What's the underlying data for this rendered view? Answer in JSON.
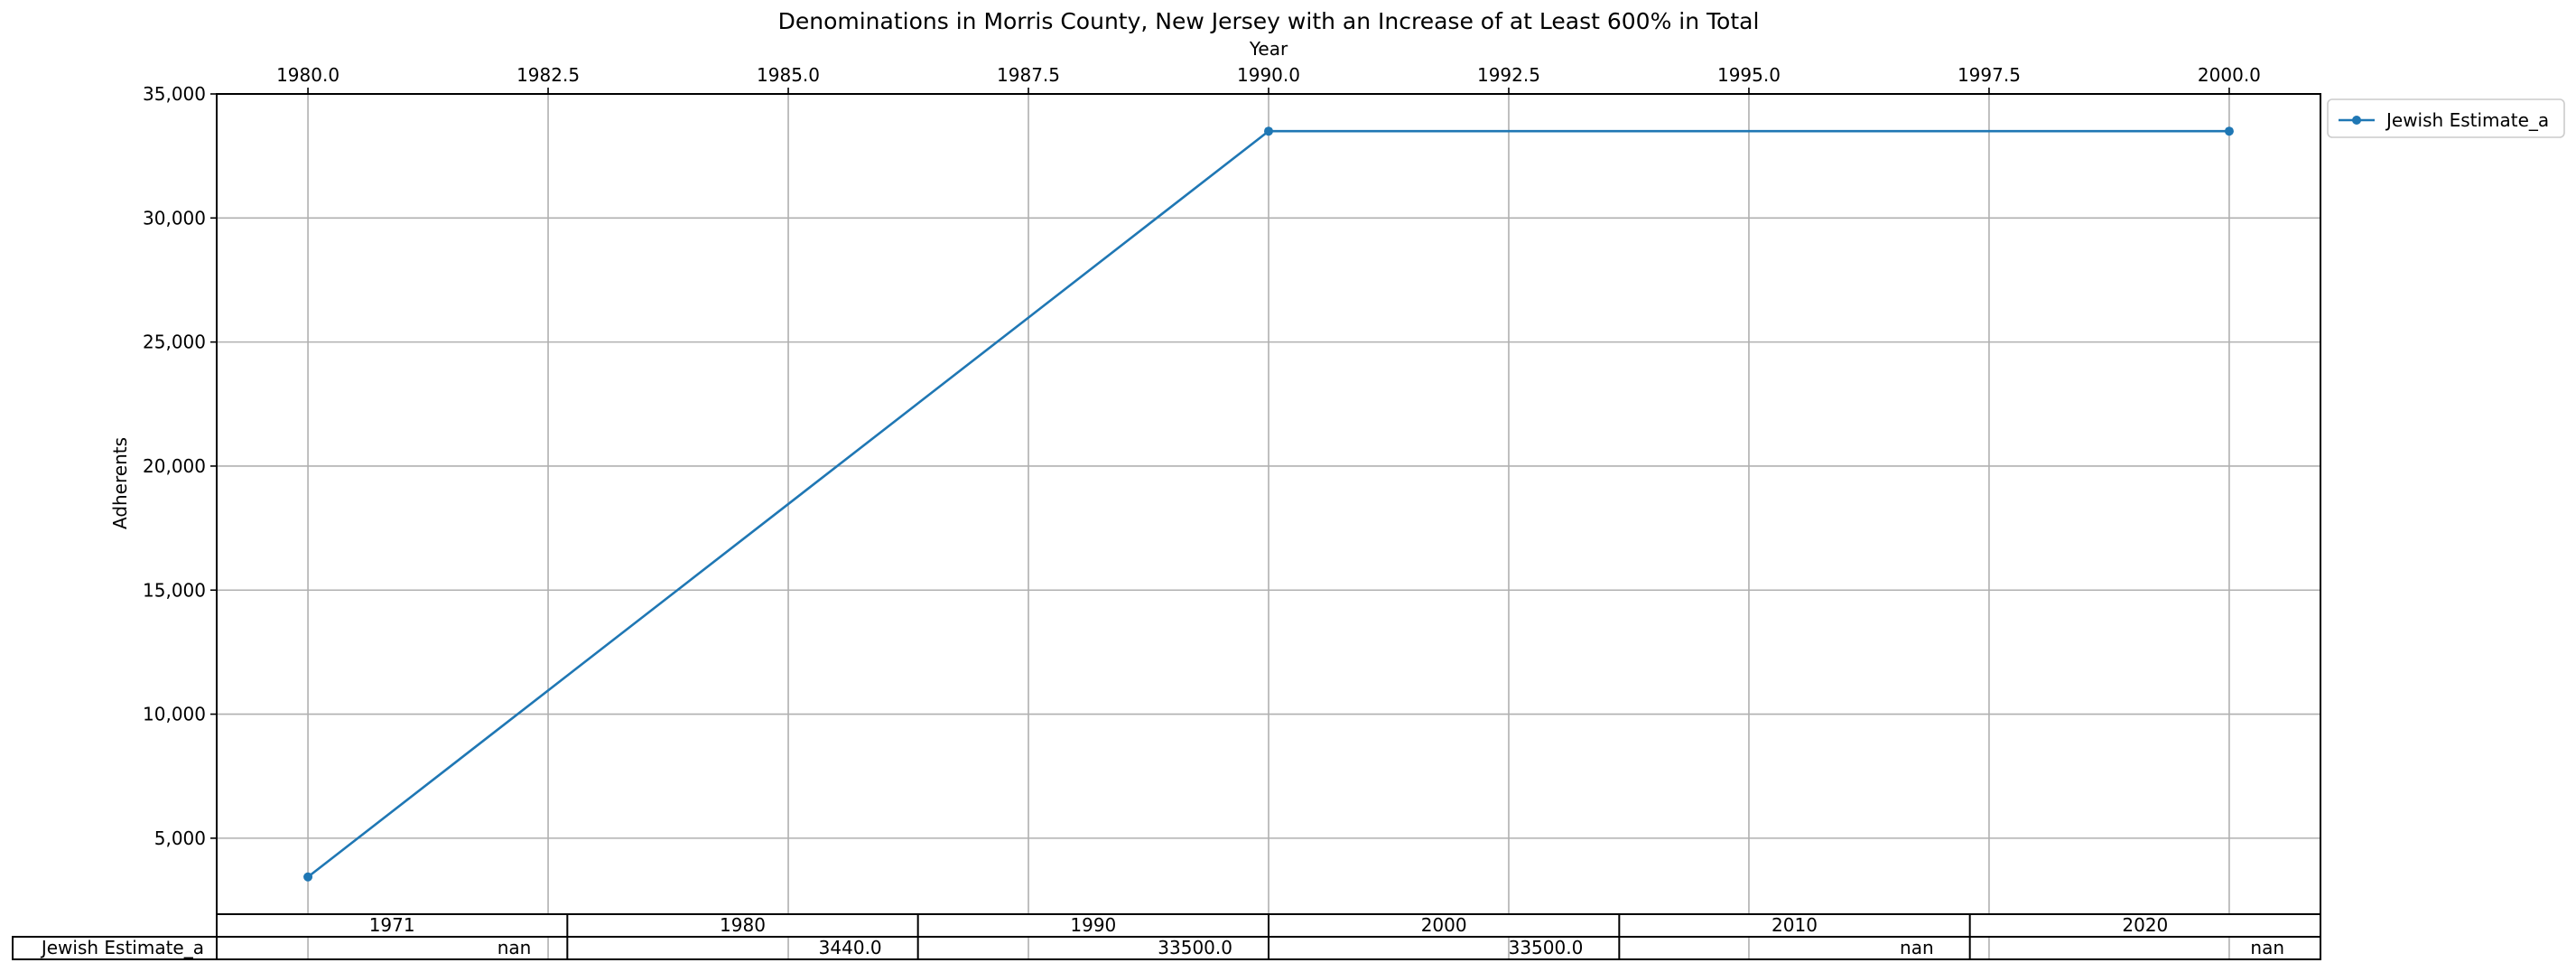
{
  "chart_data": {
    "type": "line",
    "title": "Denominations in Morris County, New Jersey with an Increase of at Least 600% in Total",
    "xlabel": "Year",
    "ylabel": "Adherents",
    "xlim": [
      1979.05,
      2000.95
    ],
    "ylim": [
      1937,
      35000
    ],
    "x_ticks": [
      "1980.0",
      "1982.5",
      "1985.0",
      "1987.5",
      "1990.0",
      "1992.5",
      "1995.0",
      "1997.5",
      "2000.0"
    ],
    "x_tick_values": [
      1980,
      1982.5,
      1985,
      1987.5,
      1990,
      1992.5,
      1995,
      1997.5,
      2000
    ],
    "y_ticks": [
      "5,000",
      "10,000",
      "15,000",
      "20,000",
      "25,000",
      "30,000",
      "35,000"
    ],
    "y_tick_values": [
      5000,
      10000,
      15000,
      20000,
      25000,
      30000,
      35000
    ],
    "grid": true,
    "legend_position": "outside-top-right",
    "series": [
      {
        "name": "Jewish Estimate_a",
        "color": "#1f77b4",
        "x": [
          1980,
          1990,
          2000
        ],
        "y": [
          3440,
          33500,
          33500
        ]
      }
    ],
    "table": {
      "columns": [
        "1971",
        "1980",
        "1990",
        "2000",
        "2010",
        "2020"
      ],
      "rows": [
        {
          "label": "Jewish Estimate_a",
          "values": [
            "nan",
            "3440.0",
            "33500.0",
            "33500.0",
            "nan",
            "nan"
          ]
        }
      ]
    }
  }
}
